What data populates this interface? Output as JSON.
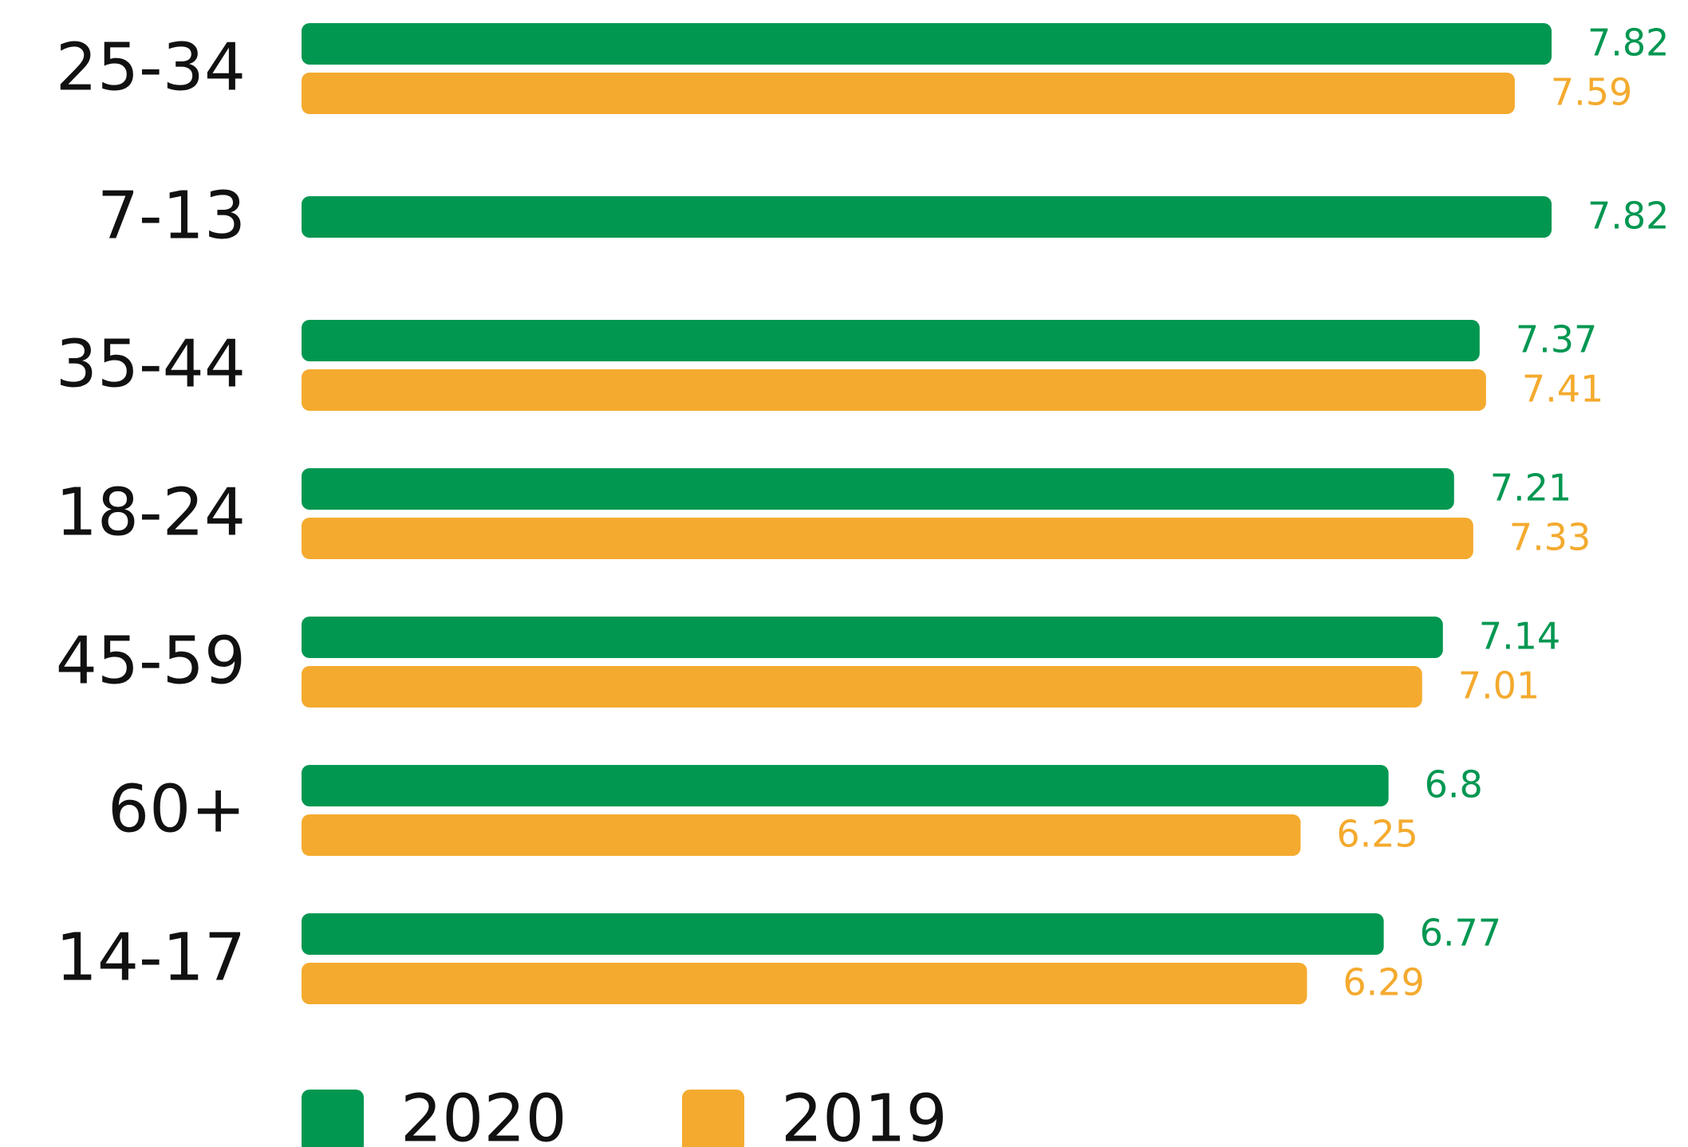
{
  "chart_data": {
    "type": "bar",
    "orientation": "horizontal",
    "categories": [
      "25-34",
      "7-13",
      "35-44",
      "18-24",
      "45-59",
      "60+",
      "14-17"
    ],
    "series": [
      {
        "name": "2020",
        "color": "#029751",
        "values": [
          7.82,
          7.82,
          7.37,
          7.21,
          7.14,
          6.8,
          6.77
        ]
      },
      {
        "name": "2019",
        "color": "#f4aa2e",
        "values": [
          7.59,
          null,
          7.41,
          7.33,
          7.01,
          6.25,
          6.29
        ]
      }
    ],
    "legend": "bottom"
  }
}
